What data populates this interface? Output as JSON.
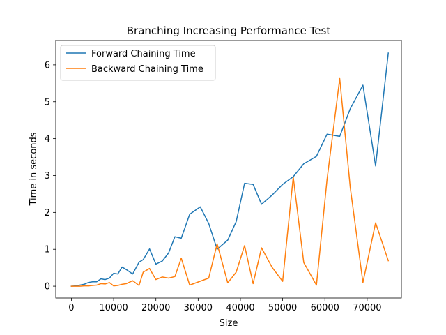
{
  "chart_data": {
    "type": "line",
    "title": "Branching Increasing Performance Test",
    "xlabel": "Size",
    "ylabel": "Time in seconds",
    "xlim": [
      -3700,
      78100
    ],
    "ylim": [
      -0.32,
      6.66
    ],
    "xticks": [
      0,
      10000,
      20000,
      30000,
      40000,
      50000,
      60000,
      70000
    ],
    "yticks": [
      0,
      1,
      2,
      3,
      4,
      5,
      6
    ],
    "grid": false,
    "legend_position": "top-left",
    "series": [
      {
        "name": "Forward Chaining Time",
        "color": "#1f77b4",
        "x": [
          0,
          1000,
          2000,
          3000,
          4000,
          5000,
          6000,
          7000,
          8000,
          9000,
          10000,
          11000,
          12000,
          13000,
          14500,
          16000,
          17000,
          18500,
          20000,
          21500,
          23000,
          24500,
          26000,
          28000,
          30500,
          32500,
          34500,
          37000,
          39000,
          41000,
          43000,
          45000,
          47500,
          50000,
          52500,
          55000,
          58000,
          60500,
          63500,
          66000,
          69000,
          72000,
          75000
        ],
        "y": [
          0.0,
          0.01,
          0.03,
          0.05,
          0.1,
          0.12,
          0.12,
          0.2,
          0.18,
          0.22,
          0.35,
          0.33,
          0.52,
          0.45,
          0.33,
          0.65,
          0.72,
          1.01,
          0.6,
          0.68,
          0.9,
          1.34,
          1.3,
          1.95,
          2.15,
          1.7,
          1.0,
          1.25,
          1.75,
          2.79,
          2.76,
          2.22,
          2.47,
          2.76,
          2.97,
          3.32,
          3.52,
          4.12,
          4.06,
          4.81,
          5.45,
          3.26,
          6.32
        ]
      },
      {
        "name": "Backward Chaining Time",
        "color": "#ff7f0e",
        "x": [
          0,
          1000,
          2000,
          3000,
          4000,
          5000,
          6000,
          7000,
          8000,
          9000,
          10000,
          11000,
          12000,
          13000,
          14500,
          16000,
          17000,
          18500,
          20000,
          21500,
          23000,
          24500,
          26000,
          28000,
          32500,
          34500,
          37000,
          39000,
          41000,
          43000,
          45000,
          47500,
          50000,
          52500,
          55000,
          58000,
          60500,
          63500,
          66000,
          69000,
          72000,
          75000
        ],
        "y": [
          0.0,
          0.0,
          0.0,
          0.01,
          0.01,
          0.02,
          0.03,
          0.07,
          0.06,
          0.1,
          0.01,
          0.02,
          0.05,
          0.07,
          0.15,
          0.02,
          0.38,
          0.48,
          0.18,
          0.25,
          0.22,
          0.26,
          0.76,
          0.03,
          0.22,
          1.15,
          0.09,
          0.38,
          1.1,
          0.07,
          1.04,
          0.51,
          0.13,
          2.96,
          0.64,
          0.03,
          2.89,
          5.63,
          2.68,
          0.1,
          1.72,
          0.69
        ]
      }
    ]
  }
}
